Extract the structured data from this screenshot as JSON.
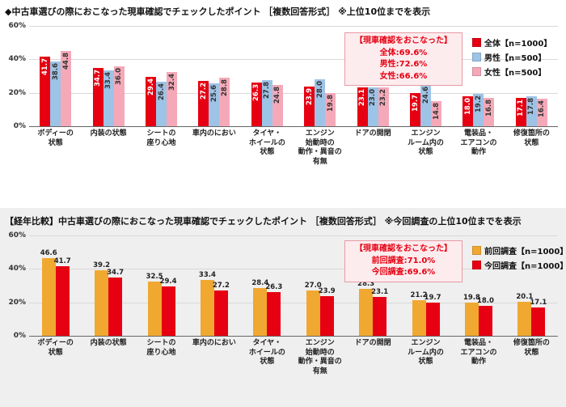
{
  "chart_data": [
    {
      "type": "bar",
      "title": "◆中古車選びの際におこなった現車確認でチェックしたポイント ［複数回答形式］ ※上位10位までを表示",
      "ylim": [
        0,
        60
      ],
      "ymax": 60,
      "yticks": [
        "60%",
        "40%",
        "20%",
        "0%"
      ],
      "grid": true,
      "legend_position": "top-right",
      "note": {
        "title": "【現車確認をおこなった】",
        "lines": [
          "全体:69.6%",
          "男性:72.6%",
          "女性:66.6%"
        ]
      },
      "categories": [
        "ボディーの\n状態",
        "内装の状態",
        "シートの\n座り心地",
        "車内のにおい",
        "タイヤ・\nホイールの\n状態",
        "エンジン\n始動時の\n動作・異音の\n有無",
        "ドアの開閉",
        "エンジン\nルーム内の\n状態",
        "電装品・\nエアコンの\n動作",
        "修復箇所の\n状態"
      ],
      "series": [
        {
          "name": "全体【n=1000】",
          "color": "#e60012",
          "label_color": "#ffffff",
          "values": [
            41.7,
            34.7,
            29.4,
            27.2,
            26.3,
            23.9,
            23.1,
            19.7,
            18.0,
            17.1
          ]
        },
        {
          "name": "男性【n=500】",
          "color": "#9dc3e6",
          "label_color": "#333333",
          "values": [
            38.6,
            33.4,
            26.4,
            25.6,
            27.8,
            28.0,
            23.0,
            24.6,
            19.2,
            17.8
          ]
        },
        {
          "name": "女性【n=500】",
          "color": "#f5a9b8",
          "label_color": "#333333",
          "values": [
            44.8,
            36.0,
            32.4,
            28.8,
            24.8,
            19.8,
            23.2,
            14.8,
            16.8,
            16.4
          ]
        }
      ]
    },
    {
      "type": "bar",
      "title": "【経年比較】中古車選びの際におこなった現車確認でチェックしたポイント ［複数回答形式］ ※今回調査の上位10位までを表示",
      "ylim": [
        0,
        60
      ],
      "ymax": 60,
      "yticks": [
        "60%",
        "40%",
        "20%",
        "0%"
      ],
      "grid": true,
      "legend_position": "top-right",
      "note": {
        "title": "【現車確認をおこなった】",
        "lines": [
          "前回調査:71.0%",
          "今回調査:69.6%"
        ]
      },
      "categories": [
        "ボディーの\n状態",
        "内装の状態",
        "シートの\n座り心地",
        "車内のにおい",
        "タイヤ・\nホイールの\n状態",
        "エンジン\n始動時の\n動作・異音の\n有無",
        "ドアの開閉",
        "エンジン\nルーム内の\n状態",
        "電装品・\nエアコンの\n動作",
        "修復箇所の\n状態"
      ],
      "series": [
        {
          "name": "前回調査【n=1000】",
          "color": "#f0a830",
          "label_color": "#222222",
          "values": [
            46.6,
            39.2,
            32.5,
            33.4,
            28.4,
            27.0,
            28.3,
            21.2,
            19.8,
            20.1
          ]
        },
        {
          "name": "今回調査【n=1000】",
          "color": "#e60012",
          "label_color": "#222222",
          "values": [
            41.7,
            34.7,
            29.4,
            27.2,
            26.3,
            23.9,
            23.1,
            19.7,
            18.0,
            17.1
          ]
        }
      ]
    }
  ]
}
